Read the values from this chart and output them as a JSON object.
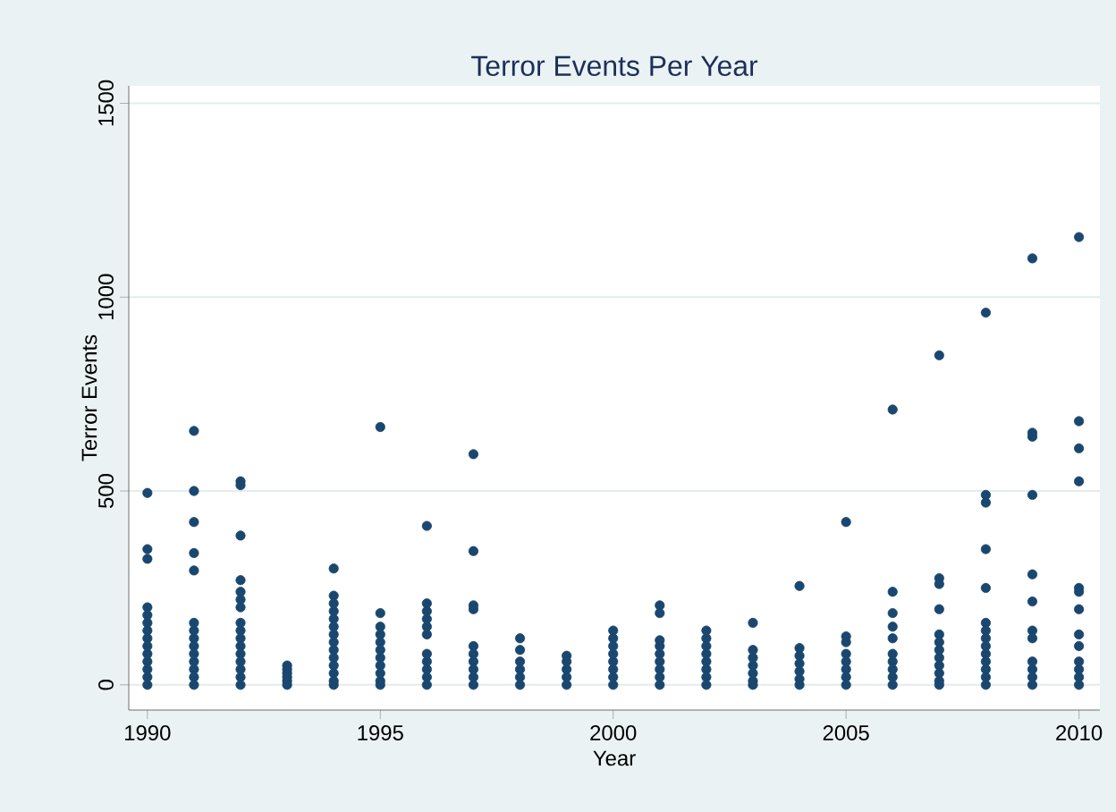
{
  "chart_data": {
    "type": "scatter",
    "title": "Terror Events Per Year",
    "xlabel": "Year",
    "ylabel": "Terror Events",
    "series": [
      {
        "color": "#1a476f",
        "x": [
          1990,
          1990,
          1990,
          1990,
          1990,
          1990,
          1990,
          1990,
          1990,
          1990,
          1990,
          1990,
          1990,
          1990,
          1991,
          1991,
          1991,
          1991,
          1991,
          1991,
          1991,
          1991,
          1991,
          1991,
          1991,
          1991,
          1991,
          1991,
          1992,
          1992,
          1992,
          1992,
          1992,
          1992,
          1992,
          1992,
          1992,
          1992,
          1992,
          1992,
          1992,
          1992,
          1992,
          1992,
          1993,
          1993,
          1993,
          1993,
          1993,
          1993,
          1994,
          1994,
          1994,
          1994,
          1994,
          1994,
          1994,
          1994,
          1994,
          1994,
          1994,
          1994,
          1994,
          1994,
          1995,
          1995,
          1995,
          1995,
          1995,
          1995,
          1995,
          1995,
          1995,
          1995,
          1995,
          1996,
          1996,
          1996,
          1996,
          1996,
          1996,
          1996,
          1996,
          1996,
          1996,
          1996,
          1997,
          1997,
          1997,
          1997,
          1997,
          1997,
          1997,
          1997,
          1997,
          1997,
          1998,
          1998,
          1998,
          1998,
          1998,
          1998,
          1999,
          1999,
          1999,
          1999,
          1999,
          2000,
          2000,
          2000,
          2000,
          2000,
          2000,
          2000,
          2000,
          2001,
          2001,
          2001,
          2001,
          2001,
          2001,
          2001,
          2001,
          2001,
          2002,
          2002,
          2002,
          2002,
          2002,
          2002,
          2002,
          2002,
          2003,
          2003,
          2003,
          2003,
          2003,
          2003,
          2003,
          2004,
          2004,
          2004,
          2004,
          2004,
          2004,
          2004,
          2005,
          2005,
          2005,
          2005,
          2005,
          2005,
          2005,
          2005,
          2006,
          2006,
          2006,
          2006,
          2006,
          2006,
          2006,
          2006,
          2006,
          2006,
          2007,
          2007,
          2007,
          2007,
          2007,
          2007,
          2007,
          2007,
          2007,
          2007,
          2007,
          2007,
          2008,
          2008,
          2008,
          2008,
          2008,
          2008,
          2008,
          2008,
          2008,
          2008,
          2008,
          2008,
          2008,
          2008,
          2009,
          2009,
          2009,
          2009,
          2009,
          2009,
          2009,
          2009,
          2009,
          2009,
          2009,
          2009,
          2010,
          2010,
          2010,
          2010,
          2010,
          2010,
          2010,
          2010,
          2010,
          2010,
          2010,
          2010,
          2010
        ],
        "values": [
          495,
          350,
          325,
          200,
          180,
          160,
          140,
          120,
          100,
          80,
          60,
          40,
          20,
          0,
          655,
          500,
          420,
          340,
          295,
          160,
          140,
          120,
          100,
          80,
          60,
          40,
          20,
          0,
          525,
          515,
          385,
          270,
          240,
          220,
          200,
          160,
          140,
          120,
          100,
          80,
          60,
          40,
          20,
          0,
          50,
          40,
          30,
          20,
          10,
          0,
          300,
          230,
          210,
          190,
          170,
          150,
          130,
          110,
          90,
          70,
          50,
          30,
          10,
          0,
          665,
          185,
          150,
          130,
          110,
          90,
          70,
          50,
          30,
          10,
          0,
          410,
          210,
          190,
          170,
          150,
          130,
          80,
          60,
          40,
          20,
          0,
          595,
          345,
          205,
          195,
          100,
          80,
          60,
          40,
          20,
          0,
          120,
          90,
          60,
          40,
          20,
          0,
          75,
          60,
          40,
          20,
          0,
          140,
          120,
          100,
          80,
          60,
          40,
          20,
          0,
          205,
          185,
          115,
          100,
          80,
          60,
          40,
          20,
          0,
          140,
          120,
          100,
          80,
          60,
          40,
          20,
          0,
          160,
          90,
          70,
          50,
          30,
          10,
          0,
          255,
          95,
          75,
          55,
          35,
          15,
          0,
          420,
          125,
          110,
          80,
          60,
          40,
          20,
          0,
          710,
          240,
          185,
          150,
          120,
          80,
          60,
          40,
          20,
          0,
          850,
          275,
          260,
          195,
          130,
          110,
          90,
          70,
          50,
          30,
          10,
          0,
          960,
          490,
          470,
          350,
          250,
          160,
          140,
          120,
          100,
          80,
          60,
          40,
          20,
          0,
          1100,
          650,
          640,
          490,
          285,
          215,
          140,
          120,
          60,
          40,
          20,
          0,
          1155,
          680,
          610,
          525,
          250,
          240,
          195,
          130,
          100,
          60,
          40,
          20,
          0
        ]
      }
    ],
    "xlim": [
      1989.6,
      2010.45
    ],
    "ylim": [
      -65,
      1545
    ],
    "xticks": [
      1990,
      1995,
      2000,
      2005,
      2010
    ],
    "yticks": [
      0,
      500,
      1000,
      1500
    ],
    "grid": "y",
    "marker": "circle"
  }
}
